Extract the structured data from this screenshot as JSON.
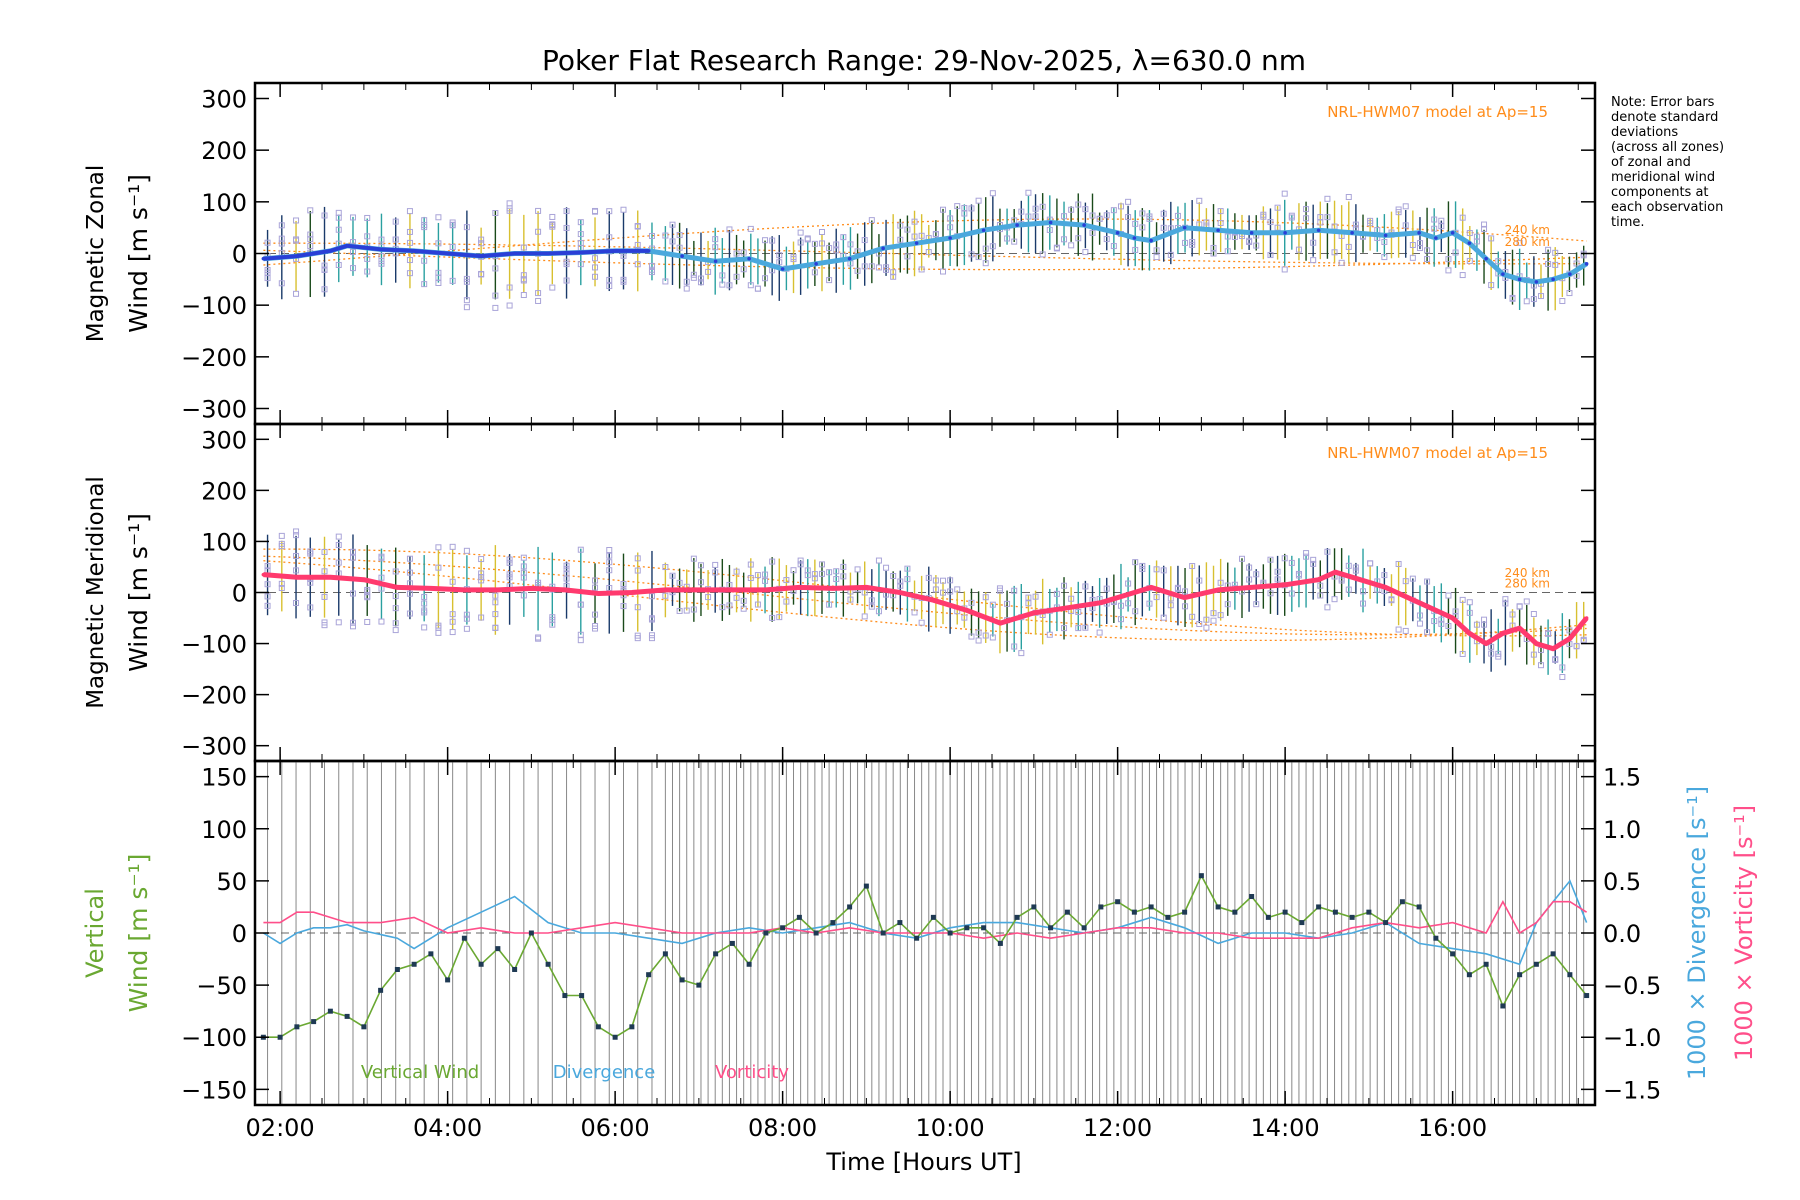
{
  "chart_data": {
    "type": "line",
    "title": "Poker Flat Research Range: 29-Nov-2025, λ=630.0 nm",
    "xlabel": "Time [Hours UT]",
    "xlim": [
      1.7,
      17.7
    ],
    "x_ticks": [
      2,
      4,
      6,
      8,
      10,
      12,
      14,
      16
    ],
    "x_tick_labels": [
      "02:00",
      "04:00",
      "06:00",
      "08:00",
      "10:00",
      "12:00",
      "14:00",
      "16:00"
    ],
    "colors": {
      "zonal": "#2a3fd6",
      "zonal_light": "#4aa8dd",
      "meridional": "#ff3a6e",
      "model": "#ff8c1a",
      "scatter": "#a9a4d8",
      "vertical": "#6aa832",
      "divergence": "#4aa8dd",
      "vorticity": "#ff4f8a",
      "dots": "#1f3a54"
    },
    "panels": [
      {
        "id": "zonal",
        "ylabel": [
          "Magnetic Zonal",
          "Wind [m s⁻¹]"
        ],
        "ylim": [
          -330,
          330
        ],
        "y_ticks": [
          -300,
          -200,
          -100,
          0,
          100,
          200,
          300
        ],
        "y_tick_labels": [
          "−300",
          "−200",
          "−100",
          "0",
          "100",
          "200",
          "300"
        ],
        "model_label": "NRL-HWM07 model at Ap=15",
        "model_altitudes": [
          "240 km",
          "280 km"
        ],
        "series": [
          {
            "name": "Magnetic Zonal Wind",
            "x": [
              1.8,
              2.2,
              2.6,
              2.8,
              3.2,
              3.6,
              4.0,
              4.4,
              4.8,
              5.2,
              5.6,
              6.0,
              6.4,
              6.8,
              7.2,
              7.6,
              8.0,
              8.4,
              8.8,
              9.2,
              9.6,
              10.0,
              10.4,
              10.8,
              11.2,
              11.6,
              12.0,
              12.2,
              12.4,
              12.8,
              13.2,
              13.6,
              14.0,
              14.4,
              14.8,
              15.2,
              15.6,
              15.8,
              16.0,
              16.2,
              16.4,
              16.6,
              16.8,
              17.0,
              17.2,
              17.4,
              17.6
            ],
            "y": [
              -10,
              -5,
              5,
              15,
              8,
              5,
              0,
              -5,
              0,
              0,
              2,
              5,
              5,
              -5,
              -15,
              -10,
              -30,
              -20,
              -10,
              10,
              20,
              30,
              45,
              55,
              60,
              55,
              40,
              30,
              25,
              50,
              45,
              40,
              40,
              45,
              40,
              35,
              40,
              30,
              40,
              20,
              -10,
              -40,
              -50,
              -55,
              -50,
              -40,
              -20
            ]
          }
        ]
      },
      {
        "id": "meridional",
        "ylabel": [
          "Magnetic Meridional",
          "Wind [m s⁻¹]"
        ],
        "ylim": [
          -330,
          330
        ],
        "y_ticks": [
          -300,
          -200,
          -100,
          0,
          100,
          200,
          300
        ],
        "y_tick_labels": [
          "−300",
          "−200",
          "−100",
          "0",
          "100",
          "200",
          "300"
        ],
        "model_label": "NRL-HWM07 model at Ap=15",
        "model_altitudes": [
          "240 km",
          "280 km"
        ],
        "series": [
          {
            "name": "Magnetic Meridional Wind",
            "x": [
              1.8,
              2.2,
              2.6,
              3.0,
              3.4,
              3.8,
              4.2,
              4.6,
              5.0,
              5.4,
              5.8,
              6.2,
              6.6,
              7.0,
              7.4,
              7.8,
              8.2,
              8.6,
              9.0,
              9.4,
              9.8,
              10.2,
              10.6,
              11.0,
              11.4,
              11.8,
              12.2,
              12.4,
              12.8,
              13.2,
              13.6,
              14.0,
              14.4,
              14.6,
              14.8,
              15.2,
              15.6,
              16.0,
              16.2,
              16.4,
              16.6,
              16.8,
              17.0,
              17.2,
              17.4,
              17.6
            ],
            "y": [
              35,
              30,
              30,
              25,
              10,
              8,
              5,
              5,
              8,
              5,
              -2,
              0,
              5,
              5,
              5,
              5,
              10,
              8,
              10,
              0,
              -15,
              -35,
              -60,
              -40,
              -30,
              -20,
              0,
              10,
              -10,
              5,
              10,
              15,
              25,
              40,
              30,
              10,
              -20,
              -50,
              -80,
              -100,
              -80,
              -70,
              -100,
              -110,
              -90,
              -50
            ]
          }
        ]
      },
      {
        "id": "vertical",
        "ylabel_left": [
          "Vertical",
          "Wind [m s⁻¹]"
        ],
        "ylim": [
          -165,
          165
        ],
        "y_ticks": [
          -150,
          -100,
          -50,
          0,
          50,
          100,
          150
        ],
        "y_tick_labels": [
          "−150",
          "−100",
          "−50",
          "0",
          "50",
          "100",
          "150"
        ],
        "ylabel_right_div": "1000 × Divergence [s⁻¹]",
        "ylabel_right_vort": "1000 × Vorticity [s⁻¹]",
        "y2lim": [
          -1.65,
          1.65
        ],
        "y2_ticks": [
          -1.5,
          -1.0,
          -0.5,
          0.0,
          0.5,
          1.0,
          1.5
        ],
        "y2_tick_labels": [
          "−1.5",
          "−1.0",
          "−0.5",
          "0.0",
          "0.5",
          "1.0",
          "1.5"
        ],
        "legend": [
          "Vertical Wind",
          "Divergence",
          "Vorticity"
        ],
        "series": [
          {
            "name": "Vertical Wind",
            "x": [
              1.8,
              2.0,
              2.2,
              2.4,
              2.6,
              2.8,
              3.0,
              3.2,
              3.4,
              3.6,
              3.8,
              4.0,
              4.2,
              4.4,
              4.6,
              4.8,
              5.0,
              5.2,
              5.4,
              5.6,
              5.8,
              6.0,
              6.2,
              6.4,
              6.6,
              6.8,
              7.0,
              7.2,
              7.4,
              7.6,
              7.8,
              8.0,
              8.2,
              8.4,
              8.6,
              8.8,
              9.0,
              9.2,
              9.4,
              9.6,
              9.8,
              10.0,
              10.2,
              10.4,
              10.6,
              10.8,
              11.0,
              11.2,
              11.4,
              11.6,
              11.8,
              12.0,
              12.2,
              12.4,
              12.6,
              12.8,
              13.0,
              13.2,
              13.4,
              13.6,
              13.8,
              14.0,
              14.2,
              14.4,
              14.6,
              14.8,
              15.0,
              15.2,
              15.4,
              15.6,
              15.8,
              16.0,
              16.2,
              16.4,
              16.6,
              16.8,
              17.0,
              17.2,
              17.4,
              17.6
            ],
            "y": [
              -100,
              -100,
              -90,
              -85,
              -75,
              -80,
              -90,
              -55,
              -35,
              -30,
              -20,
              -45,
              -5,
              -30,
              -15,
              -35,
              0,
              -30,
              -60,
              -60,
              -90,
              -100,
              -90,
              -40,
              -20,
              -45,
              -50,
              -20,
              -10,
              -30,
              0,
              5,
              15,
              0,
              10,
              25,
              45,
              0,
              10,
              -5,
              15,
              0,
              5,
              5,
              -10,
              15,
              25,
              5,
              20,
              5,
              25,
              30,
              20,
              25,
              15,
              20,
              55,
              25,
              20,
              35,
              15,
              20,
              10,
              25,
              20,
              15,
              20,
              10,
              30,
              25,
              -5,
              -20,
              -40,
              -30,
              -70,
              -40,
              -30,
              -20,
              -40,
              -60
            ]
          },
          {
            "name": "Divergence",
            "x": [
              1.8,
              2.0,
              2.2,
              2.4,
              2.6,
              2.8,
              3.0,
              3.4,
              3.6,
              3.8,
              4.0,
              4.4,
              4.8,
              5.2,
              5.6,
              6.0,
              6.4,
              6.8,
              7.2,
              7.6,
              8.0,
              8.4,
              8.8,
              9.2,
              9.6,
              10.0,
              10.4,
              10.8,
              11.2,
              11.6,
              12.0,
              12.4,
              12.8,
              13.2,
              13.6,
              14.0,
              14.4,
              14.8,
              15.2,
              15.6,
              16.0,
              16.4,
              16.8,
              17.0,
              17.2,
              17.4,
              17.6
            ],
            "y": [
              0.0,
              -0.1,
              0.0,
              0.05,
              0.05,
              0.08,
              0.02,
              -0.05,
              -0.15,
              -0.05,
              0.05,
              0.2,
              0.35,
              0.1,
              0.0,
              0.0,
              -0.05,
              -0.1,
              0.0,
              0.05,
              0.0,
              0.05,
              0.1,
              0.0,
              -0.05,
              0.05,
              0.1,
              0.1,
              0.05,
              0.0,
              0.05,
              0.15,
              0.05,
              -0.1,
              0.0,
              0.0,
              -0.05,
              0.0,
              0.1,
              -0.1,
              -0.15,
              -0.2,
              -0.3,
              0.1,
              0.3,
              0.5,
              0.1
            ]
          },
          {
            "name": "Vorticity",
            "x": [
              1.8,
              2.0,
              2.2,
              2.4,
              2.8,
              3.2,
              3.6,
              4.0,
              4.4,
              4.8,
              5.2,
              5.6,
              6.0,
              6.4,
              6.8,
              7.2,
              7.6,
              8.0,
              8.4,
              8.8,
              9.2,
              9.6,
              10.0,
              10.4,
              10.8,
              11.2,
              11.6,
              12.0,
              12.4,
              12.8,
              13.2,
              13.6,
              14.0,
              14.4,
              14.8,
              15.2,
              15.6,
              16.0,
              16.4,
              16.6,
              16.8,
              17.0,
              17.2,
              17.4,
              17.6
            ],
            "y": [
              0.1,
              0.1,
              0.2,
              0.2,
              0.1,
              0.1,
              0.15,
              0.0,
              0.05,
              0.0,
              0.0,
              0.05,
              0.1,
              0.05,
              0.0,
              0.0,
              0.0,
              0.05,
              0.0,
              0.05,
              0.0,
              0.0,
              0.0,
              -0.05,
              0.0,
              -0.05,
              0.0,
              0.05,
              0.05,
              0.0,
              0.0,
              -0.05,
              -0.05,
              -0.05,
              0.05,
              0.1,
              0.05,
              0.1,
              0.0,
              0.3,
              0.0,
              0.1,
              0.3,
              0.3,
              0.2
            ]
          }
        ]
      }
    ]
  },
  "note": {
    "lines": [
      "Note: Error bars",
      "denote standard",
      "deviations",
      "(across all zones)",
      "of zonal and",
      "meridional wind",
      "components at",
      "each observation",
      "time."
    ]
  }
}
